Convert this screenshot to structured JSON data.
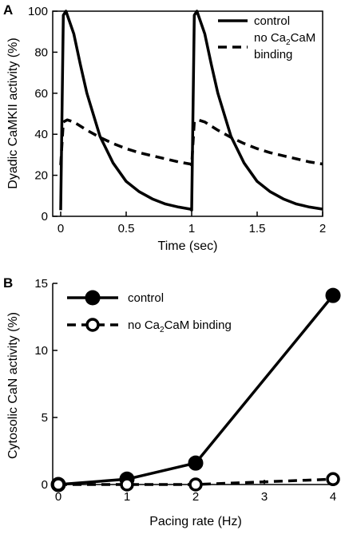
{
  "chart_data": [
    {
      "panel": "A",
      "type": "line",
      "xlabel": "Time (sec)",
      "ylabel": "Dyadic CaMKII activity (%)",
      "xlim": [
        0,
        2
      ],
      "ylim": [
        0,
        100
      ],
      "xticks": [
        "0",
        "0.5",
        "1",
        "1.5",
        "2"
      ],
      "yticks": [
        "0",
        "20",
        "40",
        "60",
        "80",
        "100"
      ],
      "legend_placement": "top-right",
      "series": [
        {
          "name": "control",
          "style": "solid",
          "x": [
            0,
            0.02,
            0.04,
            0.1,
            0.15,
            0.2,
            0.3,
            0.4,
            0.5,
            0.6,
            0.7,
            0.8,
            0.9,
            0.99,
            1.0,
            1.02,
            1.04,
            1.1,
            1.15,
            1.2,
            1.3,
            1.4,
            1.5,
            1.6,
            1.7,
            1.8,
            1.9,
            2.0
          ],
          "y": [
            3,
            98,
            100,
            89,
            74,
            60,
            39,
            26,
            17,
            12,
            8.5,
            6,
            4.5,
            3.5,
            3,
            98,
            100,
            89,
            74,
            60,
            39,
            26,
            17,
            12,
            8.5,
            6,
            4.5,
            3.5
          ]
        },
        {
          "name": "no Ca2CaM binding",
          "style": "dashed",
          "x": [
            0,
            0.02,
            0.05,
            0.1,
            0.2,
            0.3,
            0.4,
            0.5,
            0.6,
            0.7,
            0.8,
            0.9,
            0.99,
            1.0,
            1.02,
            1.05,
            1.1,
            1.2,
            1.3,
            1.4,
            1.5,
            1.6,
            1.7,
            1.8,
            1.9,
            2.0
          ],
          "y": [
            25,
            46,
            47,
            46,
            42,
            38.5,
            35.5,
            33,
            31,
            29.5,
            28,
            26.5,
            25.5,
            25,
            46,
            47,
            46,
            42,
            38.5,
            35.5,
            33,
            31,
            29.5,
            28,
            26.5,
            25.5
          ]
        }
      ]
    },
    {
      "panel": "B",
      "type": "line",
      "xlabel": "Pacing rate (Hz)",
      "ylabel": "Cytosolic CaN activity (%)",
      "xlim": [
        0,
        4
      ],
      "ylim": [
        0,
        15
      ],
      "xticks": [
        "0",
        "1",
        "2",
        "3",
        "4"
      ],
      "yticks": [
        "0",
        "5",
        "10",
        "15"
      ],
      "legend_placement": "top-left",
      "series": [
        {
          "name": "control",
          "style": "solid",
          "marker": "filled-circle",
          "x": [
            0,
            1,
            2,
            4
          ],
          "y": [
            0,
            0.4,
            1.6,
            14.1
          ]
        },
        {
          "name": "no Ca2CaM binding",
          "style": "dashed",
          "marker": "open-circle",
          "x": [
            0,
            1,
            2,
            4
          ],
          "y": [
            0,
            0,
            0,
            0.4
          ]
        }
      ]
    }
  ],
  "legend": {
    "control": "control",
    "nocacam_prefix": "no Ca",
    "nocacam_sub": "2",
    "nocacam_suffix": "CaM",
    "nocacam_line2": "binding",
    "nocacam_full_suffix": "CaM binding"
  }
}
